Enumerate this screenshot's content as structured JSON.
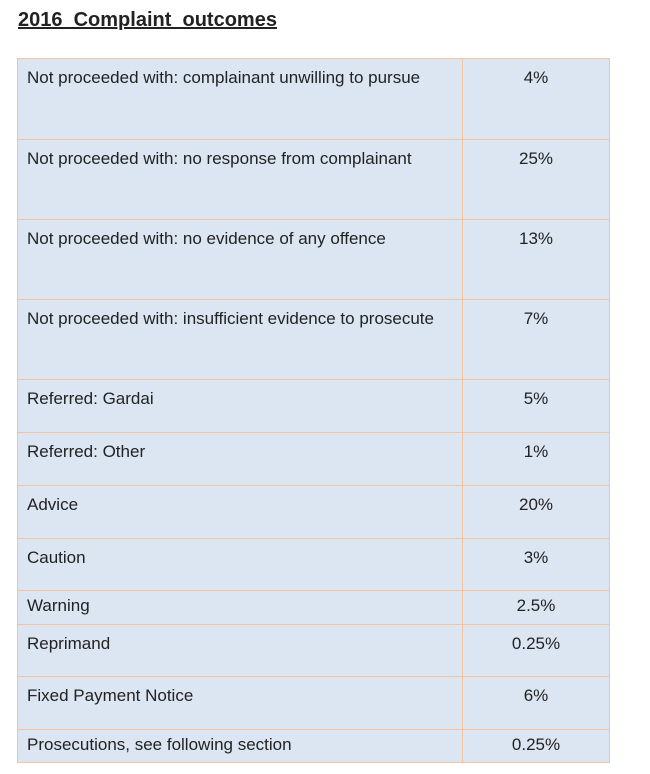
{
  "title": "2016  Complaint  outcomes",
  "table": {
    "rows": [
      [
        "Not proceeded with: complainant unwilling to pursue",
        "4%"
      ],
      [
        "Not proceeded with: no response from complainant",
        "25%"
      ],
      [
        "Not proceeded with: no evidence of any offence",
        "13%"
      ],
      [
        "Not proceeded with: insufficient evidence to prosecute",
        "7%"
      ],
      [
        "Referred: Gardai",
        "5%"
      ],
      [
        "Referred: Other",
        "1%"
      ],
      [
        "Advice",
        "20%"
      ],
      [
        "Caution",
        "3%"
      ],
      [
        "Warning",
        "2.5%"
      ],
      [
        "Reprimand",
        "0.25%"
      ],
      [
        "Fixed Payment Notice",
        "6%"
      ],
      [
        "Prosecutions, see following section",
        "0.25%"
      ]
    ]
  }
}
